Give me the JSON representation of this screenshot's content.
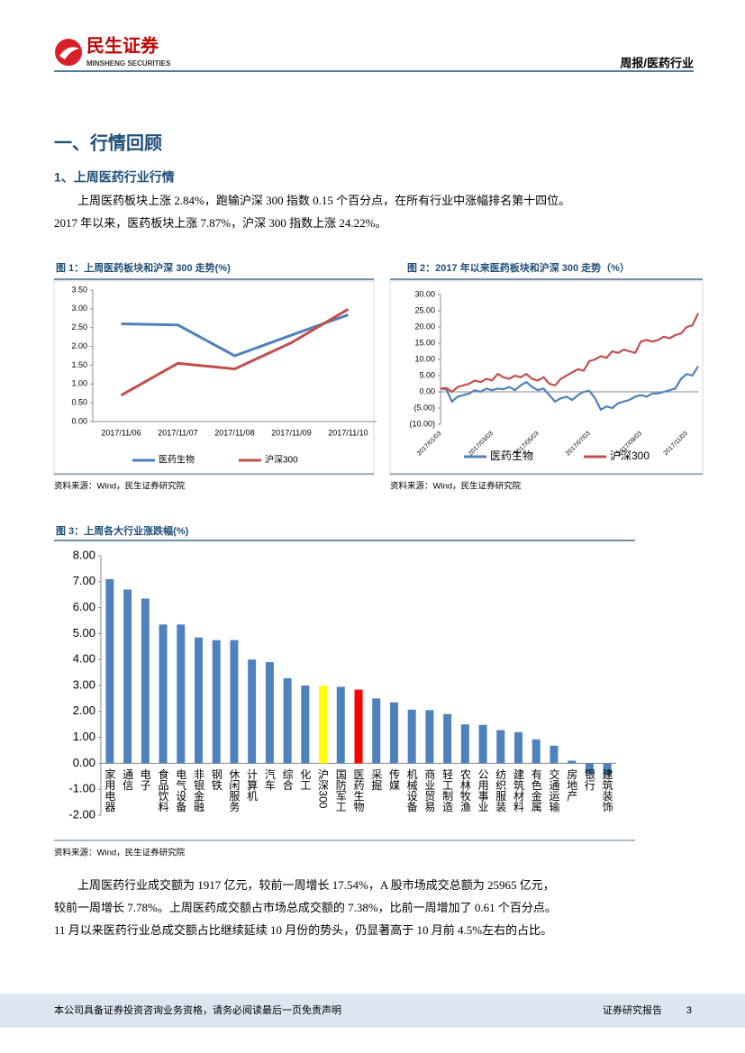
{
  "header": {
    "logo_cn": "民生证券",
    "logo_en": "MINSHENG SECURITIES",
    "report_type": "周报/医药行业"
  },
  "section_title": "一、行情回顾",
  "subsection_title": "1、上周医药行业行情",
  "paragraphs": [
    "上周医药板块上涨 2.84%，跑输沪深 300 指数 0.15 个百分点，在所有行业中涨幅排名第十四位。2017 年以来，医药板块上涨 7.87%，沪深 300 指数上涨 24.22%。",
    "上周医药行业成交额为 1917 亿元，较前一周增长 17.54%，A 股市场成交总额为 25965 亿元，较前一周增长 7.78%。上周医药成交额占市场总成交额的 7.38%，比前一周增加了 0.61 个百分点。11 月以来医药行业总成交额占比继续延续 10 月份的势头，仍显著高于 10 月前 4.5%左右的占比。"
  ],
  "chart_data": [
    {
      "type": "line",
      "title": "图 1：上周医药板块和沪深 300 走势(%)",
      "categories": [
        "2017/11/06",
        "2017/11/07",
        "2017/11/08",
        "2017/11/09",
        "2017/11/10"
      ],
      "series": [
        {
          "name": "医药生物",
          "color": "#4f81bd",
          "values": [
            2.6,
            2.57,
            1.75,
            2.3,
            2.84
          ]
        },
        {
          "name": "沪深300",
          "color": "#c0504d",
          "values": [
            0.7,
            1.55,
            1.4,
            2.1,
            2.99
          ]
        }
      ],
      "ylim": [
        0,
        3.5
      ],
      "yticks": [
        {
          "value": 0,
          "label": "0.00"
        },
        {
          "value": 0.5,
          "label": "0.50"
        },
        {
          "value": 1,
          "label": "1.00"
        },
        {
          "value": 1.5,
          "label": "1.50"
        },
        {
          "value": 2,
          "label": "2.00"
        },
        {
          "value": 2.5,
          "label": "2.50"
        },
        {
          "value": 3,
          "label": "3.00"
        },
        {
          "value": 3.5,
          "label": "3.50"
        }
      ],
      "legend": "bottom",
      "source": "资料来源：Wind，民生证券研究院"
    },
    {
      "type": "line",
      "title": "图 2：2017 年以来医药板块和沪深 300 走势（%）",
      "categories": [
        "2017/01/03",
        null,
        null,
        null,
        null,
        null,
        null,
        null,
        null,
        "2017/03/03",
        null,
        null,
        null,
        null,
        null,
        null,
        null,
        "2017/05/03",
        null,
        null,
        null,
        null,
        null,
        null,
        null,
        null,
        "2017/07/03",
        null,
        null,
        null,
        null,
        null,
        null,
        null,
        null,
        "2017/09/03",
        null,
        null,
        null,
        null,
        null,
        null,
        null,
        "2017/11/03",
        null,
        null
      ],
      "series": [
        {
          "name": "医药生物",
          "color": "#4f81bd",
          "values": [
            1.0,
            0.8,
            -3.0,
            -1.5,
            -1.0,
            -0.5,
            0.5,
            0.0,
            1.0,
            0.5,
            1.0,
            0.8,
            1.5,
            0.5,
            2.0,
            3.0,
            1.5,
            0.5,
            1.0,
            -1.0,
            -3.0,
            -2.0,
            -1.5,
            -2.5,
            -1.0,
            0.0,
            0.3,
            -2.0,
            -5.5,
            -4.5,
            -5.0,
            -3.5,
            -3.0,
            -2.5,
            -1.5,
            -1.0,
            -1.5,
            -0.5,
            -0.5,
            0.0,
            0.5,
            1.0,
            4.0,
            5.5,
            5.0,
            7.87
          ]
        },
        {
          "name": "沪深300",
          "color": "#c0504d",
          "values": [
            1.0,
            1.2,
            0.0,
            1.5,
            2.0,
            2.5,
            3.5,
            3.0,
            4.0,
            3.5,
            5.5,
            4.5,
            4.0,
            5.0,
            4.5,
            5.5,
            4.0,
            3.5,
            4.5,
            2.5,
            2.0,
            4.0,
            5.0,
            6.0,
            7.0,
            6.5,
            9.5,
            10.0,
            11.0,
            10.5,
            12.5,
            12.0,
            13.0,
            12.5,
            12.0,
            15.5,
            16.0,
            15.5,
            16.0,
            17.0,
            16.5,
            17.5,
            18.0,
            20.0,
            20.5,
            24.22
          ]
        }
      ],
      "ylim": [
        -10,
        30
      ],
      "yticks": [
        {
          "value": 30,
          "label": "30.00"
        },
        {
          "value": 25,
          "label": "25.00"
        },
        {
          "value": 20,
          "label": "20.00"
        },
        {
          "value": 15,
          "label": "15.00"
        },
        {
          "value": 10,
          "label": "10.00"
        },
        {
          "value": 5,
          "label": "5.00"
        },
        {
          "value": 0,
          "label": "0.00"
        },
        {
          "value": -5,
          "label": "(5.00)"
        },
        {
          "value": -10,
          "label": "(10.00)"
        }
      ],
      "legend": "bottom",
      "source": "资料来源：Wind，民生证券研究院"
    },
    {
      "type": "bar",
      "title": "图 3：上周各大行业涨跌幅(%)",
      "categories": [
        "家用电器",
        "通信",
        "电子",
        "食品饮料",
        "电气设备",
        "非银金融",
        "钢铁",
        "休闲服务",
        "计算机",
        "汽车",
        "综合",
        "化工",
        "沪深300",
        "国防军工",
        "医药生物",
        "采掘",
        "传媒",
        "机械设备",
        "商业贸易",
        "轻工制造",
        "农林牧渔",
        "公用事业",
        "纺织服装",
        "建筑材料",
        "有色金属",
        "交通运输",
        "房地产",
        "银行",
        "建筑装饰"
      ],
      "values": [
        7.1,
        6.7,
        6.35,
        5.35,
        5.35,
        4.85,
        4.75,
        4.75,
        4.0,
        3.9,
        3.28,
        3.0,
        2.99,
        2.95,
        2.84,
        2.5,
        2.35,
        2.07,
        2.05,
        1.9,
        1.5,
        1.48,
        1.28,
        1.2,
        0.92,
        0.68,
        0.1,
        -0.4,
        -0.45
      ],
      "colors": [
        "#4f81bd",
        "#4f81bd",
        "#4f81bd",
        "#4f81bd",
        "#4f81bd",
        "#4f81bd",
        "#4f81bd",
        "#4f81bd",
        "#4f81bd",
        "#4f81bd",
        "#4f81bd",
        "#4f81bd",
        "#ffff00",
        "#4f81bd",
        "#ff0000",
        "#4f81bd",
        "#4f81bd",
        "#4f81bd",
        "#4f81bd",
        "#4f81bd",
        "#4f81bd",
        "#4f81bd",
        "#4f81bd",
        "#4f81bd",
        "#4f81bd",
        "#4f81bd",
        "#4f81bd",
        "#4f81bd",
        "#4f81bd"
      ],
      "ylim": [
        -2,
        8
      ],
      "yticks": [
        {
          "value": 8,
          "label": "8.00"
        },
        {
          "value": 7,
          "label": "7.00"
        },
        {
          "value": 6,
          "label": "6.00"
        },
        {
          "value": 5,
          "label": "5.00"
        },
        {
          "value": 4,
          "label": "4.00"
        },
        {
          "value": 3,
          "label": "3.00"
        },
        {
          "value": 2,
          "label": "2.00"
        },
        {
          "value": 1,
          "label": "1.00"
        },
        {
          "value": 0,
          "label": "0.00"
        },
        {
          "value": -1,
          "label": "-1.00"
        },
        {
          "value": -2,
          "label": "-2.00"
        }
      ],
      "source": "资料来源：Wind，民生证券研究院"
    }
  ],
  "footer": {
    "disclaimer": "本公司具备证券投资咨询业务资格，请务必阅读最后一页免责声明",
    "report_label": "证券研究报告",
    "page_number": 3
  }
}
